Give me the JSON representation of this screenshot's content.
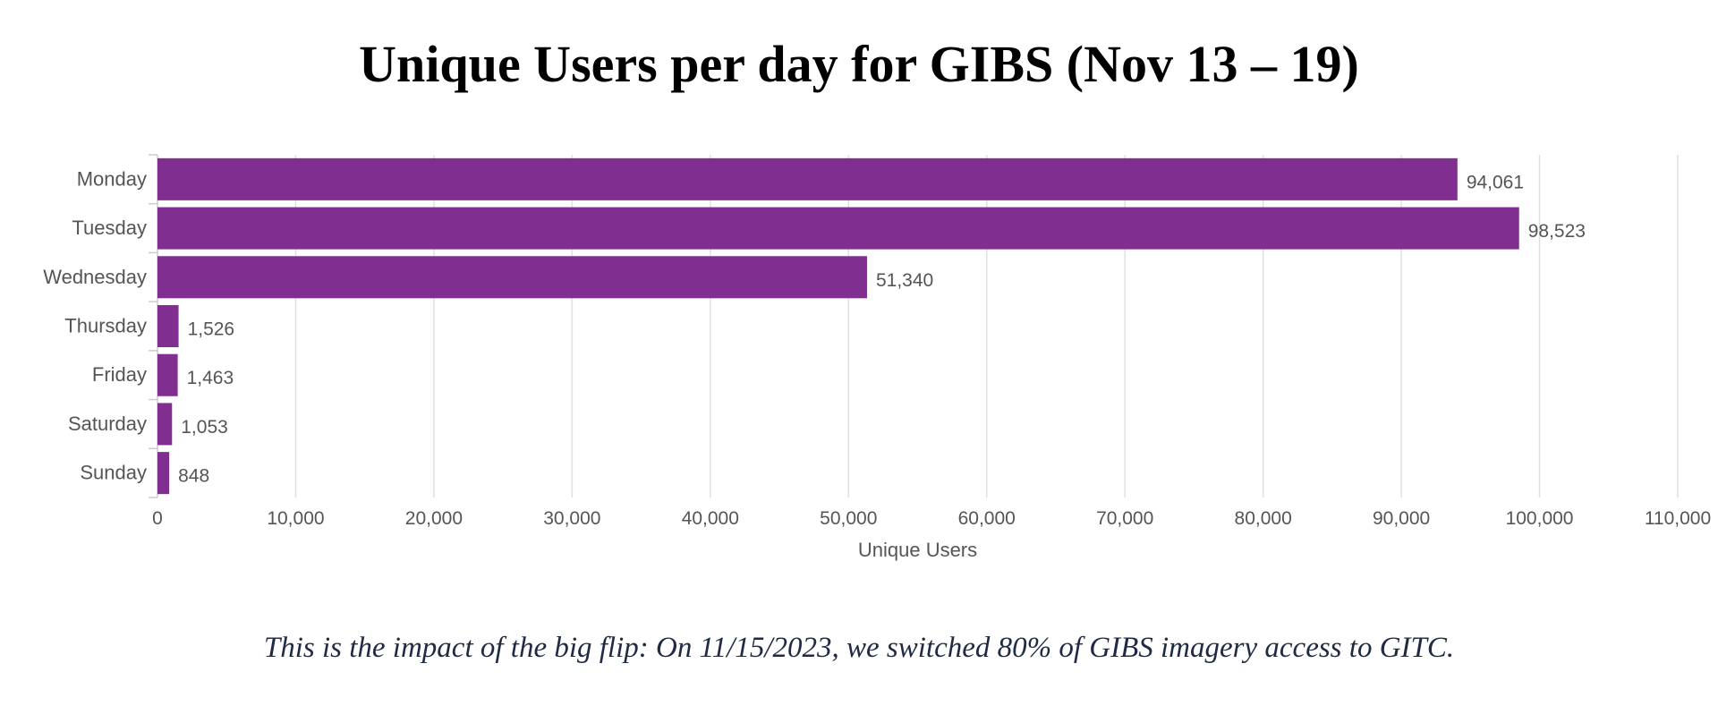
{
  "title": "Unique Users per day for GIBS (Nov 13 – 19)",
  "caption": "This is the impact of the big flip: On 11/15/2023, we switched 80% of GIBS imagery access to GITC.",
  "colors": {
    "bar": "#802f91",
    "grid": "#e0e0e0",
    "text": "#555555"
  },
  "chart_data": {
    "type": "bar",
    "orientation": "horizontal",
    "categories": [
      "Monday",
      "Tuesday",
      "Wednesday",
      "Thursday",
      "Friday",
      "Saturday",
      "Sunday"
    ],
    "values": [
      94061,
      98523,
      51340,
      1526,
      1463,
      1053,
      848
    ],
    "value_labels": [
      "94,061",
      "98,523",
      "51,340",
      "1,526",
      "1,463",
      "1,053",
      "848"
    ],
    "xlabel": "Unique Users",
    "ylabel": "",
    "xlim": [
      0,
      110000
    ],
    "xticks": [
      0,
      10000,
      20000,
      30000,
      40000,
      50000,
      60000,
      70000,
      80000,
      90000,
      100000,
      110000
    ],
    "xtick_labels": [
      "0",
      "10,000",
      "20,000",
      "30,000",
      "40,000",
      "50,000",
      "60,000",
      "70,000",
      "80,000",
      "90,000",
      "100,000",
      "110,000"
    ],
    "grid": true
  }
}
